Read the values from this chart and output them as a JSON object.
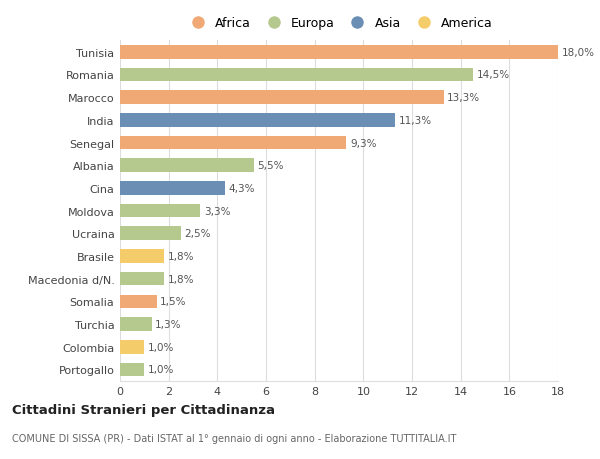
{
  "categories": [
    "Tunisia",
    "Romania",
    "Marocco",
    "India",
    "Senegal",
    "Albania",
    "Cina",
    "Moldova",
    "Ucraina",
    "Brasile",
    "Macedonia d/N.",
    "Somalia",
    "Turchia",
    "Colombia",
    "Portogallo"
  ],
  "values": [
    18.0,
    14.5,
    13.3,
    11.3,
    9.3,
    5.5,
    4.3,
    3.3,
    2.5,
    1.8,
    1.8,
    1.5,
    1.3,
    1.0,
    1.0
  ],
  "labels": [
    "18,0%",
    "14,5%",
    "13,3%",
    "11,3%",
    "9,3%",
    "5,5%",
    "4,3%",
    "3,3%",
    "2,5%",
    "1,8%",
    "1,8%",
    "1,5%",
    "1,3%",
    "1,0%",
    "1,0%"
  ],
  "continent": [
    "Africa",
    "Europa",
    "Africa",
    "Asia",
    "Africa",
    "Europa",
    "Asia",
    "Europa",
    "Europa",
    "America",
    "Europa",
    "Africa",
    "Europa",
    "America",
    "Europa"
  ],
  "colors": {
    "Africa": "#F0A875",
    "Europa": "#B5C98E",
    "Asia": "#6B8EB5",
    "America": "#F5CC6A"
  },
  "legend_order": [
    "Africa",
    "Europa",
    "Asia",
    "America"
  ],
  "xlim": [
    0,
    18
  ],
  "xticks": [
    0,
    2,
    4,
    6,
    8,
    10,
    12,
    14,
    16,
    18
  ],
  "title1": "Cittadini Stranieri per Cittadinanza",
  "title2": "COMUNE DI SISSA (PR) - Dati ISTAT al 1° gennaio di ogni anno - Elaborazione TUTTITALIA.IT",
  "background_color": "#ffffff",
  "grid_color": "#dddddd"
}
